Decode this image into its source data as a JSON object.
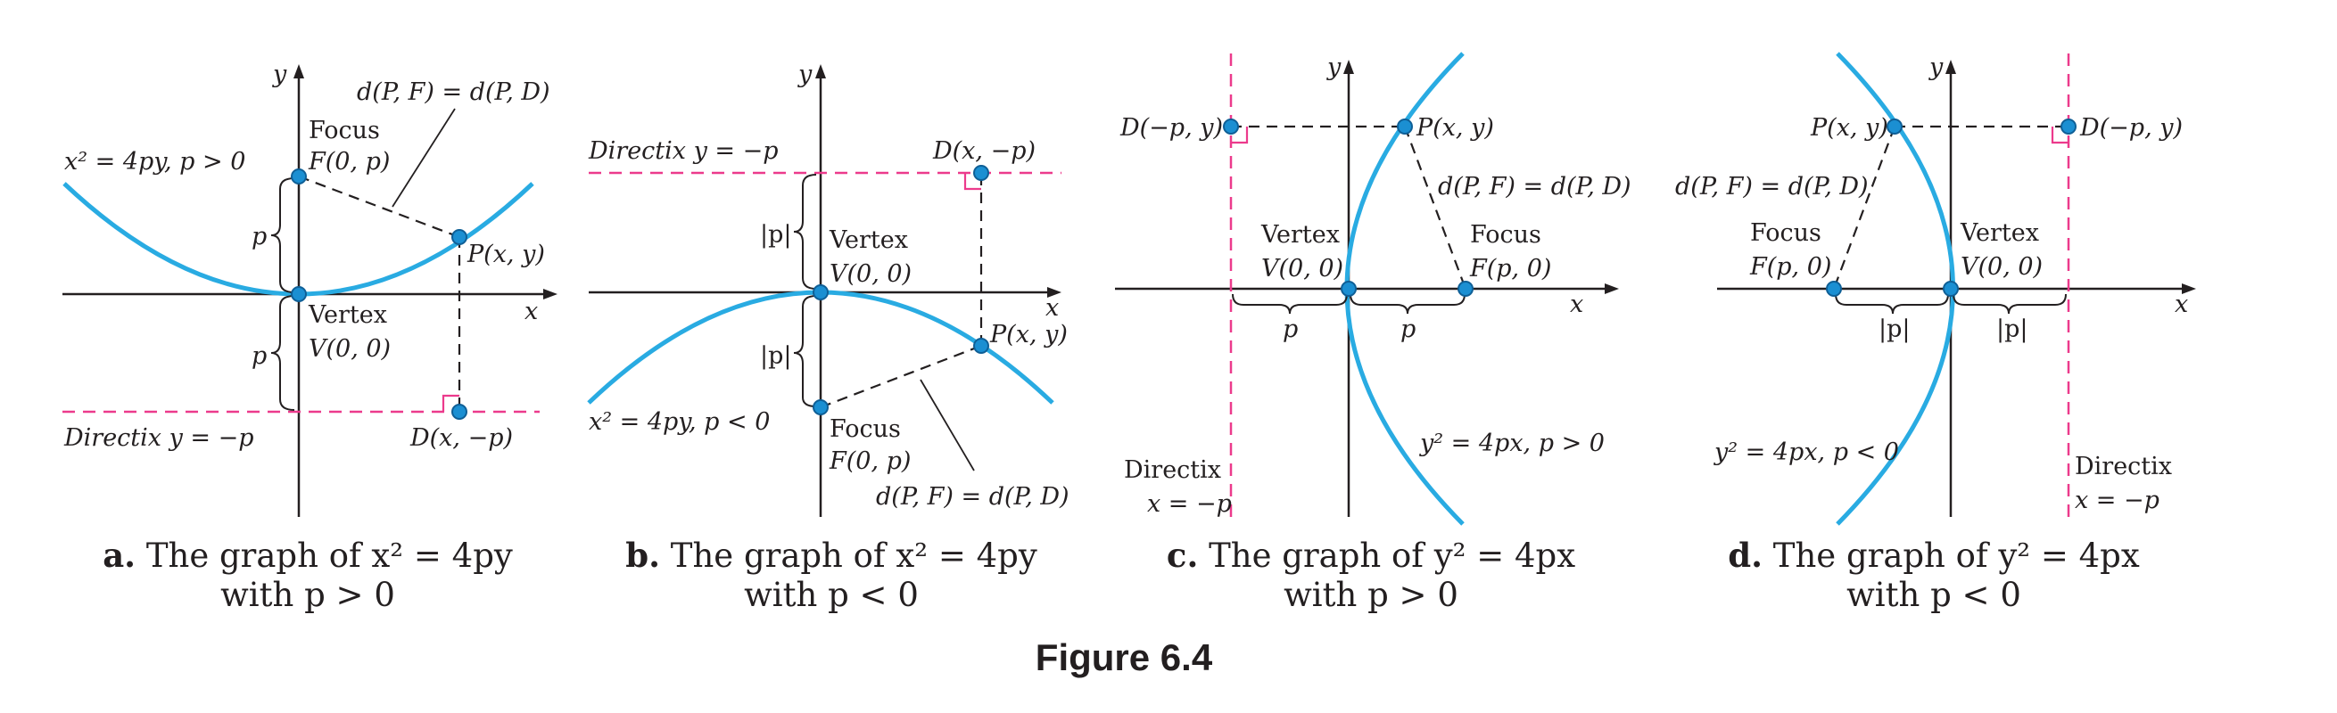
{
  "colors": {
    "curve": "#29abe2",
    "directrix": "#ec3a8c",
    "point": "#1b8fd2",
    "text": "#231f20"
  },
  "figure_title": "Figure 6.4",
  "panels": {
    "a": {
      "equation": "x² = 4py, p > 0",
      "focus_word": "Focus",
      "focus_coords": "F(0, p)",
      "vertex_word": "Vertex",
      "vertex_coords": "V(0, 0)",
      "point_p": "P(x, y)",
      "point_d": "D(x, −p)",
      "directrix": "Directix y = −p",
      "distance_eq": "d(P, F) = d(P, D)",
      "p_upper": "p",
      "p_lower": "p",
      "axis_x": "x",
      "axis_y": "y",
      "caption_letter": "a.",
      "caption_line1": " The graph of x² = 4py",
      "caption_line2": "with p > 0"
    },
    "b": {
      "equation": "x² = 4py, p < 0",
      "focus_word": "Focus",
      "focus_coords": "F(0, p)",
      "vertex_word": "Vertex",
      "vertex_coords": "V(0, 0)",
      "point_p": "P(x, y)",
      "point_d": "D(x, −p)",
      "directrix": "Directix y = −p",
      "distance_eq": "d(P, F) = d(P, D)",
      "p_upper": "|p|",
      "p_lower": "|p|",
      "axis_x": "x",
      "axis_y": "y",
      "caption_letter": "b.",
      "caption_line1": " The graph of x² = 4py",
      "caption_line2": "with p < 0"
    },
    "c": {
      "equation": "y² = 4px, p > 0",
      "focus_word": "Focus",
      "focus_coords": "F(p, 0)",
      "vertex_word": "Vertex",
      "vertex_coords": "V(0, 0)",
      "point_p": "P(x, y)",
      "point_d": "D(−p, y)",
      "directrix_word": "Directix",
      "directrix_eq": "x = −p",
      "distance_eq": "d(P, F) = d(P, D)",
      "p_left": "p",
      "p_right": "p",
      "axis_x": "x",
      "axis_y": "y",
      "caption_letter": "c.",
      "caption_line1": " The graph of y² = 4px",
      "caption_line2": "with p > 0"
    },
    "d": {
      "equation": "y² = 4px, p < 0",
      "focus_word": "Focus",
      "focus_coords": "F(p, 0)",
      "vertex_word": "Vertex",
      "vertex_coords": "V(0, 0)",
      "point_p": "P(x, y)",
      "point_d": "D(−p, y)",
      "directrix_word": "Directix",
      "directrix_eq": "x = −p",
      "distance_eq": "d(P, F) = d(P, D)",
      "p_left": "|p|",
      "p_right": "|p|",
      "axis_x": "x",
      "axis_y": "y",
      "caption_letter": "d.",
      "caption_line1": " The graph of y² = 4px",
      "caption_line2": "with p < 0"
    }
  }
}
